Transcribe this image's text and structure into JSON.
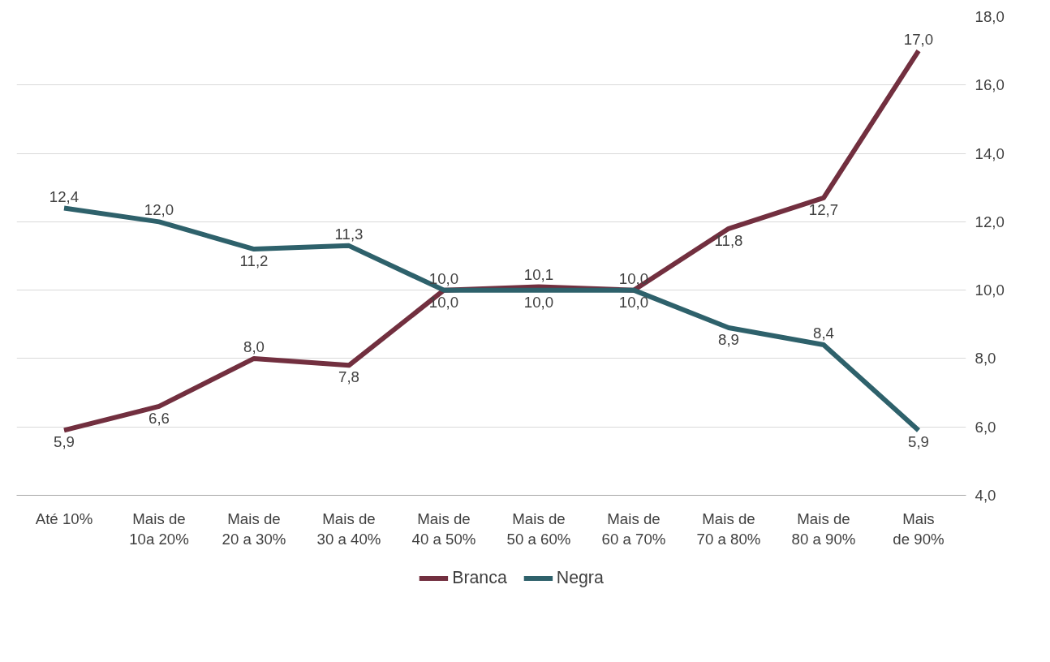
{
  "chart_data": {
    "type": "line",
    "categories": [
      "Até 10%",
      "Mais de\n10a 20%",
      "Mais de\n20 a 30%",
      "Mais de\n30 a 40%",
      "Mais de\n40 a 50%",
      "Mais de\n50 a 60%",
      "Mais de\n60 a 70%",
      "Mais de\n70 a 80%",
      "Mais de\n80 a 90%",
      "Mais\nde 90%"
    ],
    "series": [
      {
        "name": "Branca",
        "color": "#722f3f",
        "values": [
          5.9,
          6.6,
          8.0,
          7.8,
          10.0,
          10.1,
          10.0,
          11.8,
          12.7,
          17.0
        ],
        "value_labels": [
          "5,9",
          "6,6",
          "8,0",
          "7,8",
          "10,0",
          "10,1",
          "10,0",
          "11,8",
          "12,7",
          "17,0"
        ]
      },
      {
        "name": "Negra",
        "color": "#2e616b",
        "values": [
          12.4,
          12.0,
          11.2,
          11.3,
          10.0,
          10.0,
          10.0,
          8.9,
          8.4,
          5.9
        ],
        "value_labels": [
          "12,4",
          "12,0",
          "11,2",
          "11,3",
          "10,0",
          "10,0",
          "10,0",
          "8,9",
          "8,4",
          "5,9"
        ]
      }
    ],
    "ylim": [
      4,
      18
    ],
    "yticks": [
      {
        "value": 4,
        "label": "4,0"
      },
      {
        "value": 6,
        "label": "6,0"
      },
      {
        "value": 8,
        "label": "8,0"
      },
      {
        "value": 10,
        "label": "10,0"
      },
      {
        "value": 12,
        "label": "12,0"
      },
      {
        "value": 14,
        "label": "14,0"
      },
      {
        "value": 16,
        "label": "16,0"
      },
      {
        "value": 18,
        "label": "18,0"
      }
    ],
    "grid": "y",
    "legend": "bottom",
    "marker": "none",
    "line_style": "solid"
  }
}
